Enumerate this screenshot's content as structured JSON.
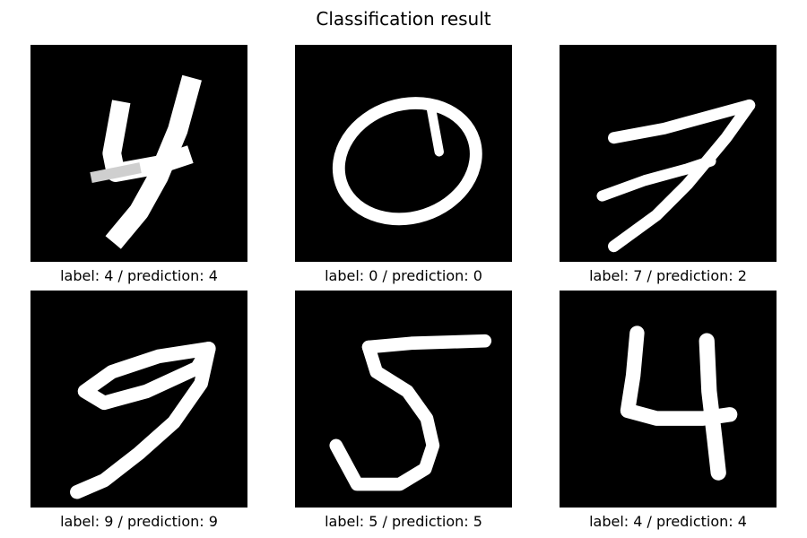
{
  "figure": {
    "title": "Classification result",
    "panels": [
      {
        "digit_icon": "digit-4-image",
        "caption": "label: 4 / prediction: 4"
      },
      {
        "digit_icon": "digit-0-image",
        "caption": "label: 0 / prediction: 0"
      },
      {
        "digit_icon": "digit-7-image",
        "caption": "label: 7 / prediction: 2"
      },
      {
        "digit_icon": "digit-9-image",
        "caption": "label: 9 / prediction: 9"
      },
      {
        "digit_icon": "digit-5-image",
        "caption": "label: 5 / prediction: 5"
      },
      {
        "digit_icon": "digit-4-image",
        "caption": "label: 4 / prediction: 4"
      }
    ]
  }
}
